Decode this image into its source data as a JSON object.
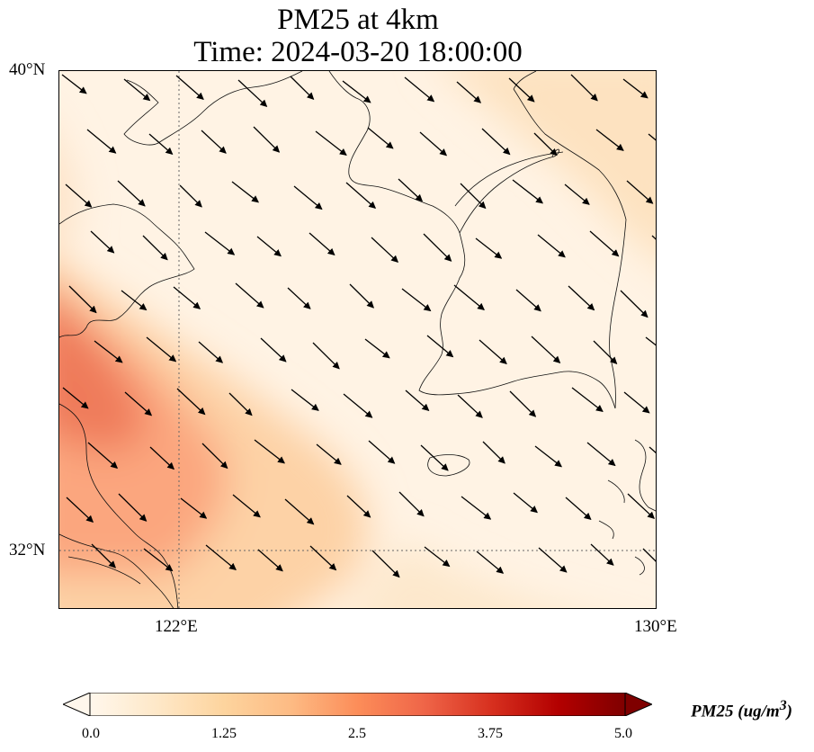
{
  "title": {
    "line1": "PM25 at 4km",
    "line2": "Time: 2024-03-20 18:00:00"
  },
  "axes": {
    "lat_ticks": [
      "40°N",
      "32°N"
    ],
    "lon_ticks": [
      "122°E",
      "130°E"
    ],
    "lat_range": [
      31,
      40
    ],
    "lon_range": [
      120,
      130
    ],
    "gridlines": "dotted at 122°E and 32°N"
  },
  "colorbar": {
    "colormap": "OrRd",
    "title": "PM25 (ug/m",
    "title_sup": "3",
    "title_end": ")",
    "tick_labels": [
      "0.0",
      "1.25",
      "2.5",
      "3.75",
      "5.0"
    ],
    "range": [
      0.0,
      5.0
    ],
    "extend": "both",
    "colors": [
      "#fff7ec",
      "#fee8c8",
      "#fdd49e",
      "#fdbb84",
      "#fc8d59",
      "#ef6548",
      "#d7301f",
      "#b30000",
      "#7f0000"
    ]
  },
  "map_layers": {
    "fill": "PM25 concentration",
    "vectors": "wind arrows",
    "lines": "coastlines and borders"
  }
}
